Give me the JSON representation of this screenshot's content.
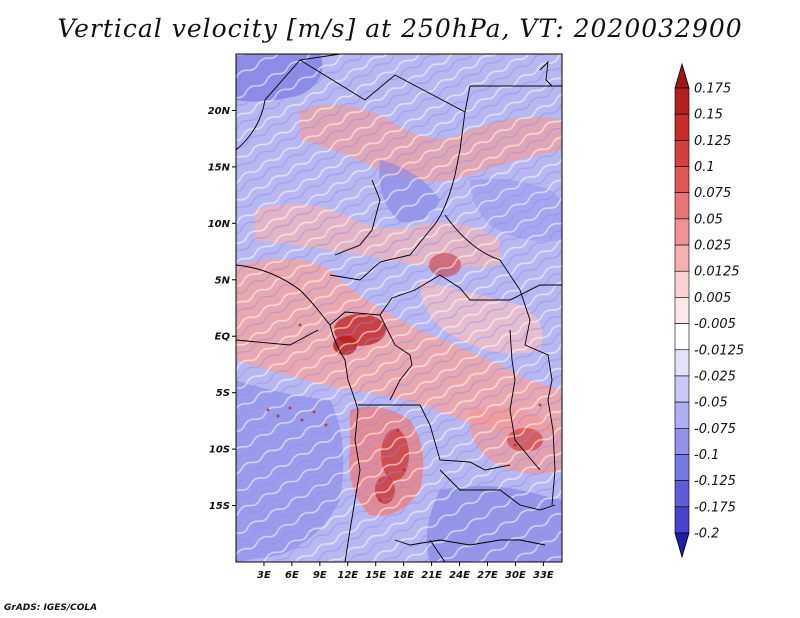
{
  "title": "Vertical velocity [m/s] at 250hPa, VT: 2020032900",
  "map": {
    "lat_range": [
      -20,
      25
    ],
    "lon_range": [
      0,
      35
    ],
    "lat_ticks": [
      {
        "value": 20,
        "label": "20N"
      },
      {
        "value": 15,
        "label": "15N"
      },
      {
        "value": 10,
        "label": "10N"
      },
      {
        "value": 5,
        "label": "5N"
      },
      {
        "value": 0,
        "label": "EQ"
      },
      {
        "value": -5,
        "label": "5S"
      },
      {
        "value": -10,
        "label": "10S"
      },
      {
        "value": -15,
        "label": "15S"
      }
    ],
    "lon_ticks": [
      {
        "value": 3,
        "label": "3E"
      },
      {
        "value": 6,
        "label": "6E"
      },
      {
        "value": 9,
        "label": "9E"
      },
      {
        "value": 12,
        "label": "12E"
      },
      {
        "value": 15,
        "label": "15E"
      },
      {
        "value": 18,
        "label": "18E"
      },
      {
        "value": 21,
        "label": "21E"
      },
      {
        "value": 24,
        "label": "24E"
      },
      {
        "value": 27,
        "label": "27E"
      },
      {
        "value": 30,
        "label": "30E"
      },
      {
        "value": 33,
        "label": "33E"
      }
    ]
  },
  "colorbar": {
    "levels": [
      {
        "label": "0.175",
        "color": "#b41e1e"
      },
      {
        "label": "0.15",
        "color": "#c62c2c"
      },
      {
        "label": "0.125",
        "color": "#d44040"
      },
      {
        "label": "0.1",
        "color": "#df5858"
      },
      {
        "label": "0.075",
        "color": "#e87474"
      },
      {
        "label": "0.05",
        "color": "#f09292"
      },
      {
        "label": "0.025",
        "color": "#f6b0b0"
      },
      {
        "label": "0.0125",
        "color": "#fad0d0"
      },
      {
        "label": "0.005",
        "color": "#fde8e8"
      },
      {
        "label": "-0.005",
        "color": "#ffffff"
      },
      {
        "label": "-0.0125",
        "color": "#e2e2fb"
      },
      {
        "label": "-0.025",
        "color": "#c8c8f7"
      },
      {
        "label": "-0.05",
        "color": "#aeaef2"
      },
      {
        "label": "-0.075",
        "color": "#9292ec"
      },
      {
        "label": "-0.1",
        "color": "#7878e4"
      },
      {
        "label": "-0.125",
        "color": "#5e5edb"
      },
      {
        "label": "-0.175",
        "color": "#4444cf"
      },
      {
        "label": "-0.2",
        "color": "#2c2cbe"
      }
    ],
    "top_arrow_color": "#a01616",
    "bottom_arrow_color": "#1e1ea8"
  },
  "credit": "GrADS: IGES/COLA"
}
